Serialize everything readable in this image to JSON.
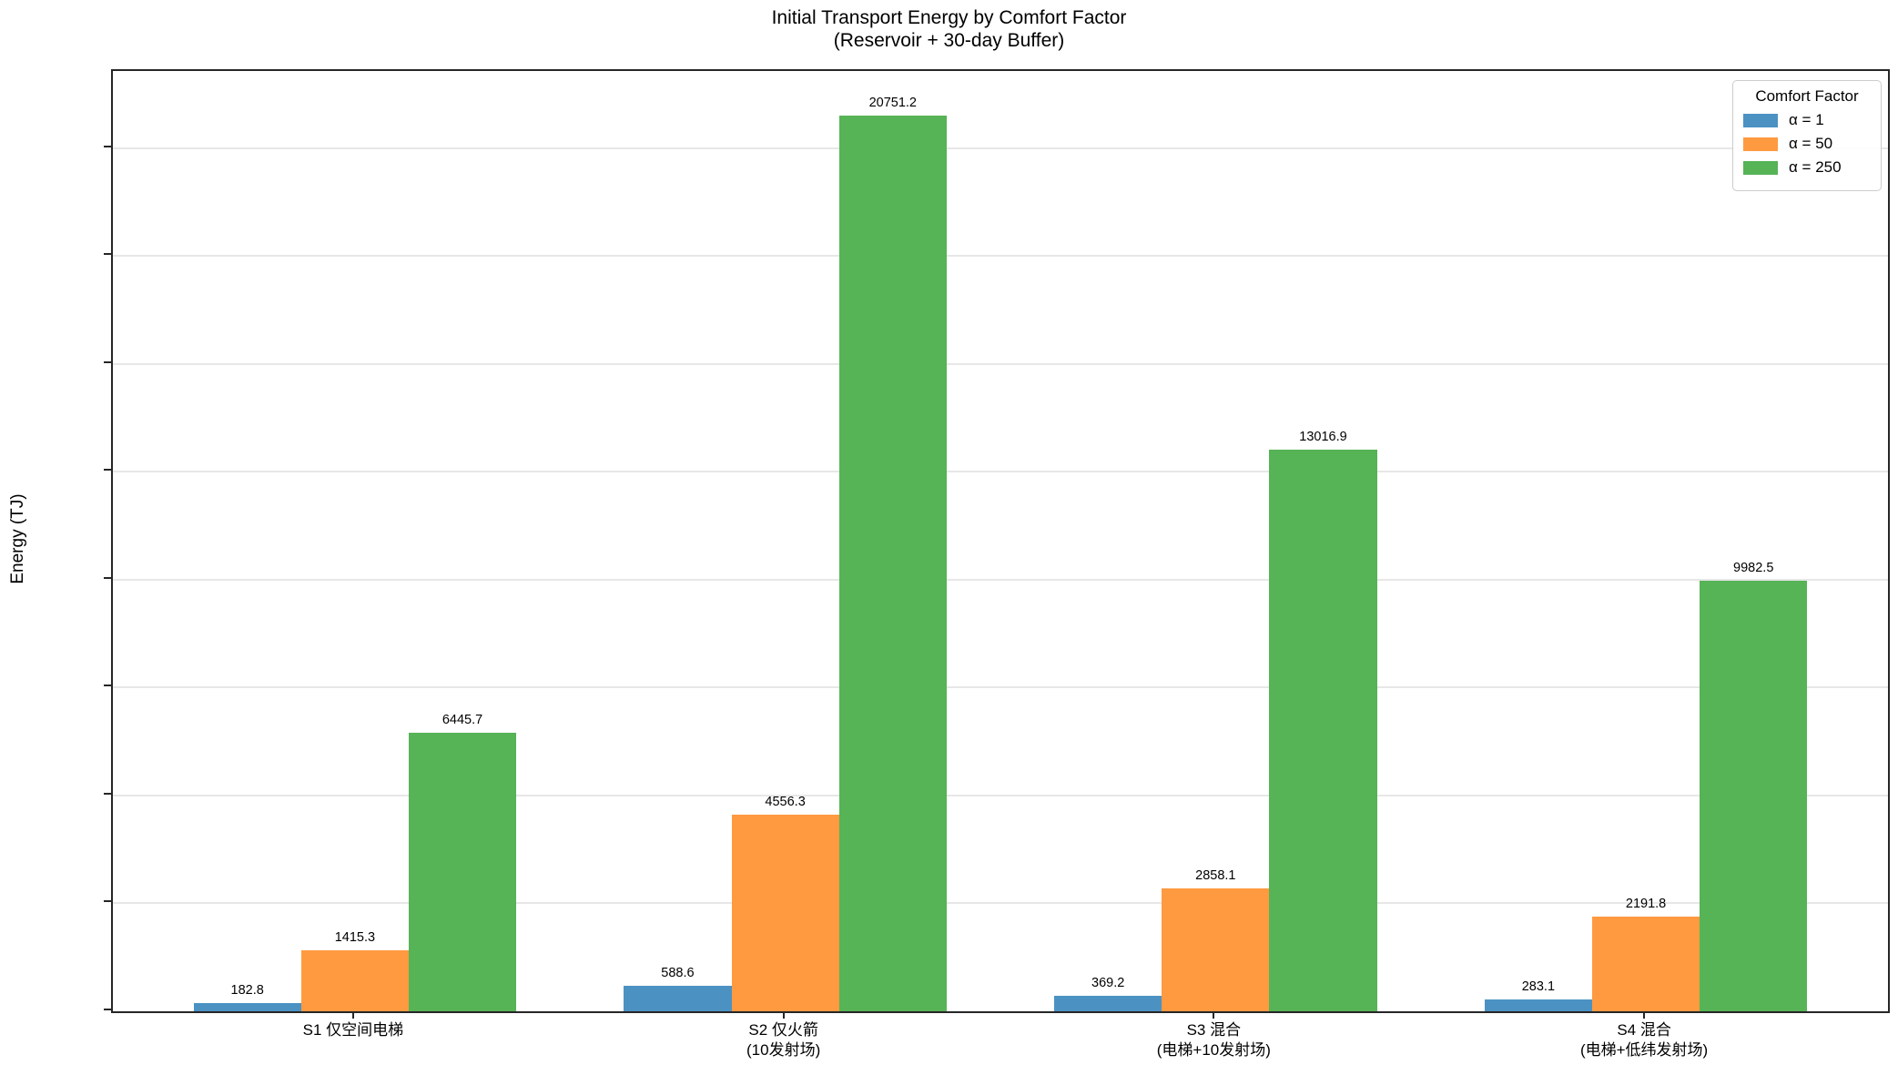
{
  "title": {
    "line1": "Initial Transport Energy by Comfort Factor",
    "line2": "(Reservoir + 30-day Buffer)"
  },
  "chart_data": {
    "type": "bar",
    "title": "Initial Transport Energy by Comfort Factor (Reservoir + 30-day Buffer)",
    "xlabel": "",
    "ylabel": "Energy (TJ)",
    "categories": [
      "S1 仅空间电梯",
      "S2 仅火箭 (10发射场)",
      "S3 混合 (电梯+10发射场)",
      "S4 混合 (电梯+低纬发射场)"
    ],
    "category_lines": [
      [
        "S1 仅空间电梯"
      ],
      [
        "S2 仅火箭",
        "(10发射场)"
      ],
      [
        "S3 混合",
        "(电梯+10发射场)"
      ],
      [
        "S4 混合",
        "(电梯+低纬发射场)"
      ]
    ],
    "series": [
      {
        "name": "α = 1",
        "color": "#4b92c3",
        "values": [
          182.8,
          588.6,
          369.2,
          283.1
        ],
        "value_labels": [
          "182.8",
          "588.6",
          "369.2",
          "283.1"
        ]
      },
      {
        "name": "α = 50",
        "color": "#ff9a40",
        "values": [
          1415.3,
          4556.3,
          2858.1,
          2191.8
        ],
        "value_labels": [
          "1415.3",
          "4556.3",
          "2858.1",
          "2191.8"
        ]
      },
      {
        "name": "α = 250",
        "color": "#56b356",
        "values": [
          6445.7,
          20751.2,
          13016.9,
          9982.5
        ],
        "value_labels": [
          "6445.7",
          "20751.2",
          "13016.9",
          "9982.5"
        ]
      }
    ],
    "ylim": [
      0,
      21789
    ],
    "yticks": [
      0,
      2500,
      5000,
      7500,
      10000,
      12500,
      15000,
      17500,
      20000
    ],
    "grid": "horizontal-light-gray",
    "legend": {
      "title": "Comfort Factor",
      "entries": [
        "α = 1",
        "α = 50",
        "α = 250"
      ],
      "position": "upper-right"
    },
    "bar_labels_shown": true,
    "colors": {
      "alpha1": "#4b92c3",
      "alpha50": "#ff9a40",
      "alpha250": "#56b356",
      "gridline": "#e7e7e7",
      "spine": "#262626"
    }
  }
}
